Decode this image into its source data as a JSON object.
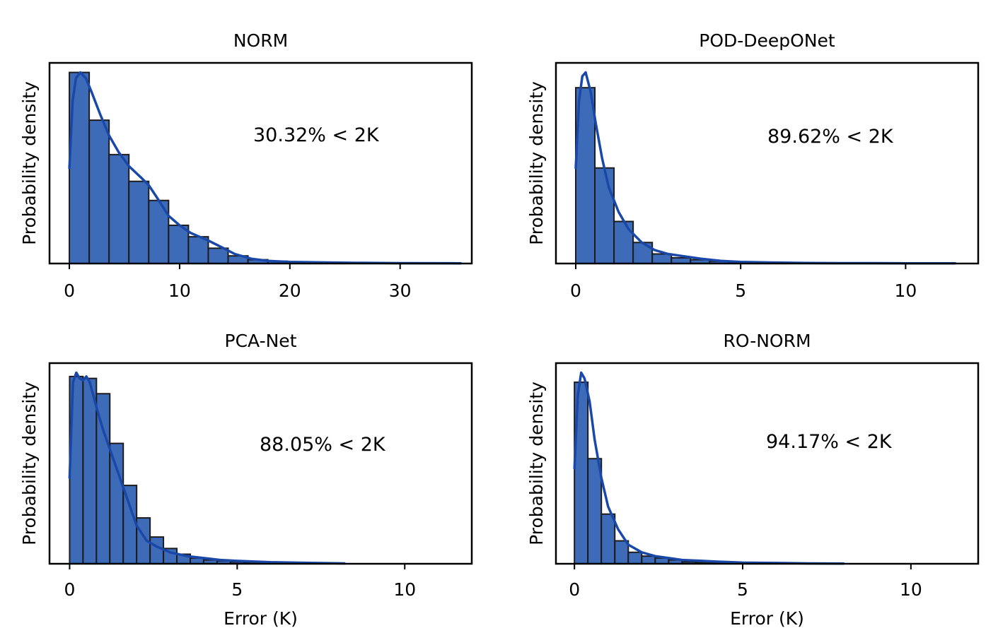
{
  "figure": {
    "type": "histogram_grid"
  },
  "colors": {
    "bar_fill": "#3d6bb8",
    "bar_edge": "#1c1c1c",
    "kde_line": "#1a48a8",
    "axes": "#000000"
  },
  "chart_data": [
    {
      "type": "bar",
      "title": "NORM",
      "ylabel": "Probability density",
      "xlabel": "",
      "annotation": "30.32% < 2K",
      "xlim": [
        -1.8,
        36.5
      ],
      "ylim": [
        0,
        1.05
      ],
      "xticks": [
        0,
        10,
        20,
        30
      ],
      "xtick_labels": [
        "0",
        "10",
        "20",
        "30"
      ],
      "bin_edges": [
        0,
        1.8,
        3.6,
        5.4,
        7.2,
        9.0,
        10.8,
        12.6,
        14.4,
        16.2,
        18.0,
        19.8,
        21.6,
        23.4,
        25.2,
        27.0,
        28.8,
        30.6,
        32.4,
        34.2,
        36.0
      ],
      "values": [
        1.0,
        0.75,
        0.57,
        0.43,
        0.33,
        0.2,
        0.14,
        0.08,
        0.04,
        0.02,
        0.012,
        0.008,
        0.005,
        0.003,
        0.002,
        0.001,
        0.001,
        0.001,
        0.0,
        0.0
      ],
      "kde": {
        "x": [
          0,
          0.3,
          0.6,
          1.0,
          1.5,
          2.0,
          2.8,
          3.6,
          4.5,
          5.4,
          6.5,
          7.2,
          8.0,
          9.0,
          10.0,
          11.0,
          12.6,
          14.0,
          15.0,
          16.5,
          18.0,
          20.0,
          25.0,
          30.0,
          35.5
        ],
        "y": [
          0.5,
          0.85,
          0.97,
          1.0,
          0.97,
          0.9,
          0.78,
          0.67,
          0.58,
          0.51,
          0.45,
          0.41,
          0.34,
          0.25,
          0.2,
          0.16,
          0.12,
          0.08,
          0.05,
          0.025,
          0.014,
          0.008,
          0.004,
          0.002,
          0.001
        ]
      }
    },
    {
      "type": "bar",
      "title": "POD-DeepONet",
      "ylabel": "Probability density",
      "xlabel": "",
      "annotation": "89.62% < 2K",
      "xlim": [
        -0.6,
        12.2
      ],
      "ylim": [
        0,
        1.05
      ],
      "xticks": [
        0,
        5,
        10
      ],
      "xtick_labels": [
        "0",
        "5",
        "10"
      ],
      "bin_edges": [
        0,
        0.58,
        1.16,
        1.74,
        2.32,
        2.9,
        3.48,
        4.06,
        4.64,
        5.22,
        5.8,
        6.38,
        6.96,
        7.54,
        8.12,
        8.7,
        9.28,
        9.86,
        10.44,
        11.02,
        11.6
      ],
      "values": [
        0.92,
        0.5,
        0.22,
        0.11,
        0.05,
        0.03,
        0.02,
        0.012,
        0.008,
        0.005,
        0.003,
        0.002,
        0.002,
        0.001,
        0.001,
        0.001,
        0.001,
        0.001,
        0.0,
        0.0
      ],
      "kde": {
        "x": [
          0,
          0.1,
          0.2,
          0.3,
          0.45,
          0.6,
          0.8,
          1.0,
          1.3,
          1.6,
          2.0,
          2.4,
          2.8,
          3.2,
          3.8,
          4.4,
          5.0,
          6.0,
          7.0,
          8.0,
          9.0,
          10.0,
          11.5
        ],
        "y": [
          0.5,
          0.85,
          0.98,
          1.0,
          0.9,
          0.74,
          0.55,
          0.4,
          0.27,
          0.18,
          0.11,
          0.07,
          0.05,
          0.04,
          0.025,
          0.014,
          0.008,
          0.005,
          0.003,
          0.002,
          0.002,
          0.001,
          0.001
        ]
      }
    },
    {
      "type": "bar",
      "title": "PCA-Net",
      "ylabel": "Probability density",
      "xlabel": "Error (K)",
      "annotation": "88.05% < 2K",
      "xlim": [
        -0.6,
        12.0
      ],
      "ylim": [
        0,
        1.05
      ],
      "xticks": [
        0,
        5,
        10
      ],
      "xtick_labels": [
        "0",
        "5",
        "10"
      ],
      "bin_edges": [
        0,
        0.4,
        0.8,
        1.2,
        1.6,
        2.0,
        2.4,
        2.8,
        3.2,
        3.6,
        4.0,
        4.4,
        4.8,
        5.2,
        5.6,
        6.0,
        6.4,
        6.8,
        7.2,
        7.6,
        8.0
      ],
      "values": [
        0.98,
        0.97,
        0.89,
        0.63,
        0.41,
        0.24,
        0.14,
        0.08,
        0.05,
        0.03,
        0.02,
        0.015,
        0.01,
        0.006,
        0.004,
        0.003,
        0.002,
        0.002,
        0.001,
        0.001
      ],
      "kde": {
        "x": [
          0,
          0.1,
          0.2,
          0.3,
          0.4,
          0.5,
          0.6,
          0.8,
          1.0,
          1.2,
          1.5,
          1.8,
          2.0,
          2.3,
          2.6,
          3.0,
          3.5,
          4.0,
          4.5,
          5.0,
          6.0,
          7.0,
          8.2
        ],
        "y": [
          0.45,
          0.95,
          1.0,
          0.97,
          0.96,
          0.98,
          0.95,
          0.82,
          0.7,
          0.6,
          0.45,
          0.3,
          0.2,
          0.12,
          0.09,
          0.06,
          0.04,
          0.03,
          0.02,
          0.015,
          0.008,
          0.005,
          0.002
        ]
      }
    },
    {
      "type": "bar",
      "title": "RO-NORM",
      "ylabel": "Probability density",
      "xlabel": "Error (K)",
      "annotation": "94.17% < 2K",
      "xlim": [
        -0.55,
        12.0
      ],
      "ylim": [
        0,
        1.05
      ],
      "xticks": [
        0,
        5,
        10
      ],
      "xtick_labels": [
        "0",
        "5",
        "10"
      ],
      "bin_edges": [
        0,
        0.4,
        0.8,
        1.2,
        1.6,
        2.0,
        2.4,
        2.8,
        3.2,
        3.6,
        4.0,
        4.4,
        4.8,
        5.2,
        5.6,
        6.0,
        6.4,
        6.8,
        7.2,
        7.6,
        8.0
      ],
      "values": [
        0.95,
        0.55,
        0.26,
        0.12,
        0.06,
        0.04,
        0.03,
        0.02,
        0.01,
        0.008,
        0.006,
        0.005,
        0.004,
        0.003,
        0.002,
        0.002,
        0.001,
        0.001,
        0.001,
        0.0
      ],
      "kde": {
        "x": [
          0,
          0.1,
          0.2,
          0.3,
          0.45,
          0.6,
          0.8,
          1.0,
          1.3,
          1.6,
          2.0,
          2.4,
          2.8,
          3.2,
          3.8,
          4.4,
          5.0,
          6.0,
          7.0,
          8.0
        ],
        "y": [
          0.5,
          0.88,
          1.0,
          0.97,
          0.85,
          0.65,
          0.45,
          0.3,
          0.18,
          0.1,
          0.06,
          0.04,
          0.03,
          0.02,
          0.015,
          0.01,
          0.006,
          0.004,
          0.002,
          0.001
        ]
      }
    }
  ]
}
